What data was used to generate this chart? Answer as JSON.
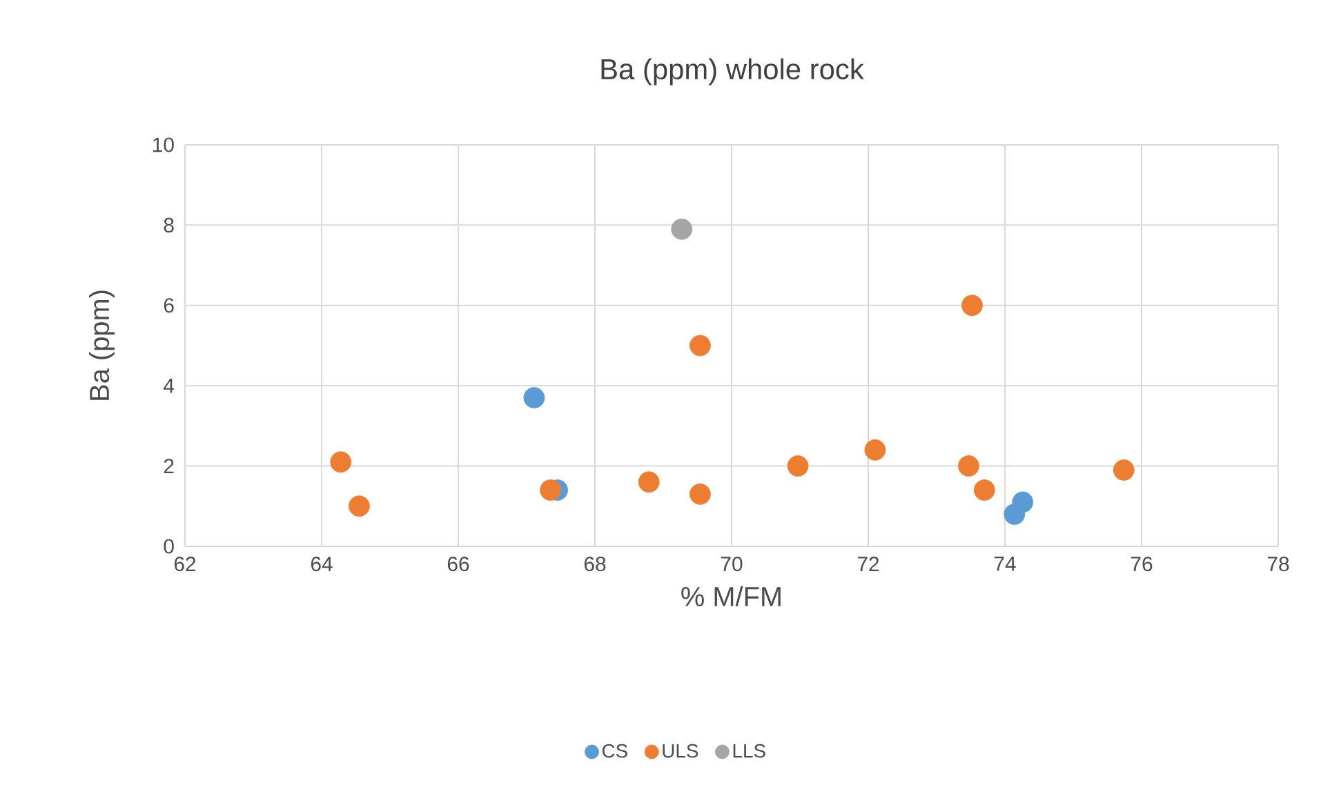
{
  "chart_data": {
    "type": "scatter",
    "title": "Ba (ppm) whole rock",
    "xlabel": "% M/FM",
    "ylabel": "Ba (ppm)",
    "xlim": [
      62,
      78
    ],
    "xticks": [
      62,
      64,
      66,
      68,
      70,
      72,
      74,
      76,
      78
    ],
    "ylim": [
      0,
      10
    ],
    "yticks": [
      0,
      2,
      4,
      6,
      8,
      10
    ],
    "grid": true,
    "legend": "bottom",
    "marker": "circle",
    "series": [
      {
        "name": "CS",
        "color": "#5b9bd5",
        "x": [
          67.11,
          67.45,
          74.14,
          74.26
        ],
        "values": [
          3.7,
          1.4,
          0.8,
          1.1
        ]
      },
      {
        "name": "ULS",
        "color": "#ed7d31",
        "x": [
          64.28,
          64.55,
          67.35,
          68.79,
          69.54,
          69.54,
          70.97,
          72.1,
          73.47,
          73.52,
          73.7,
          75.74
        ],
        "values": [
          2.1,
          1.0,
          1.4,
          1.6,
          5.0,
          1.3,
          2.0,
          2.4,
          2.0,
          6.0,
          1.4,
          1.9
        ]
      },
      {
        "name": "LLS",
        "color": "#a5a5a5",
        "x": [
          69.27
        ],
        "values": [
          7.9
        ]
      }
    ]
  }
}
